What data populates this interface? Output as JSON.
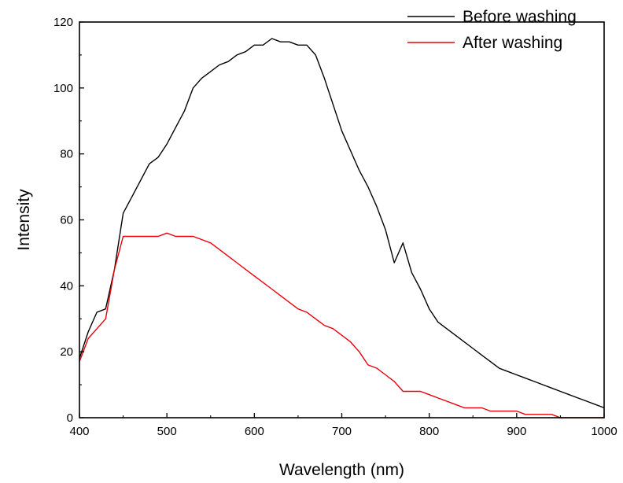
{
  "chart_data": {
    "type": "line",
    "title": "",
    "xlabel": "Wavelength (nm)",
    "ylabel": "Intensity",
    "xlim": [
      400,
      1000
    ],
    "ylim": [
      0,
      120
    ],
    "x_ticks": [
      400,
      500,
      600,
      700,
      800,
      900,
      1000
    ],
    "y_ticks": [
      0,
      20,
      40,
      60,
      80,
      100,
      120
    ],
    "grid": false,
    "legend_position": "top-right",
    "x": [
      400,
      410,
      420,
      430,
      440,
      450,
      460,
      470,
      480,
      490,
      500,
      510,
      520,
      530,
      540,
      550,
      560,
      570,
      580,
      590,
      600,
      610,
      620,
      630,
      640,
      650,
      660,
      670,
      680,
      690,
      700,
      710,
      720,
      730,
      740,
      750,
      760,
      770,
      780,
      790,
      800,
      810,
      820,
      830,
      840,
      850,
      860,
      870,
      880,
      890,
      900,
      910,
      920,
      930,
      940,
      950,
      960,
      970,
      980,
      990,
      1000
    ],
    "series": [
      {
        "name": "Before washing",
        "color": "#000000",
        "values": [
          18,
          26,
          32,
          33,
          45,
          62,
          67,
          72,
          77,
          79,
          83,
          88,
          93,
          100,
          103,
          105,
          107,
          108,
          110,
          111,
          113,
          113,
          115,
          114,
          114,
          113,
          113,
          110,
          103,
          95,
          87,
          81,
          75,
          70,
          64,
          57,
          47,
          53,
          44,
          39,
          33,
          29,
          27,
          25,
          23,
          21,
          19,
          17,
          15,
          14,
          13,
          12,
          11,
          10,
          9,
          8,
          7,
          6,
          5,
          4,
          3
        ]
      },
      {
        "name": "After washing",
        "color": "#e8000b",
        "values": [
          17,
          24,
          27,
          30,
          45,
          55,
          55,
          55,
          55,
          55,
          56,
          55,
          55,
          55,
          54,
          53,
          51,
          49,
          47,
          45,
          43,
          41,
          39,
          37,
          35,
          33,
          32,
          30,
          28,
          27,
          25,
          23,
          20,
          16,
          15,
          13,
          11,
          8,
          8,
          8,
          7,
          6,
          5,
          4,
          3,
          3,
          3,
          2,
          2,
          2,
          2,
          1,
          1,
          1,
          1,
          0,
          0,
          0,
          0,
          0,
          0
        ]
      }
    ]
  }
}
